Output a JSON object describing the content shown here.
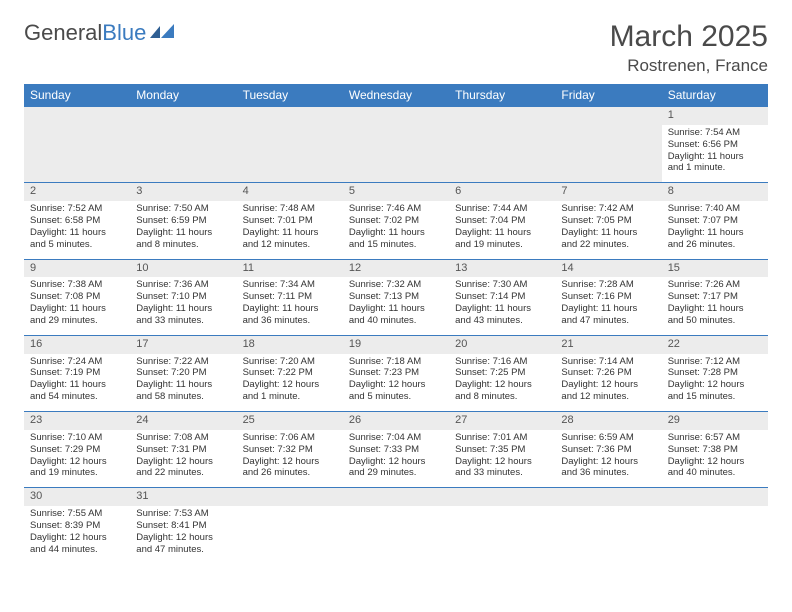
{
  "logo": {
    "text1": "General",
    "text2": "Blue"
  },
  "title": "March 2025",
  "location": "Rostrenen, France",
  "colors": {
    "header_bg": "#3b7bbf",
    "header_text": "#ffffff",
    "daynum_bg": "#ececec",
    "border": "#3b7bbf",
    "text": "#333333",
    "title_text": "#4a4a4a"
  },
  "weekdays": [
    "Sunday",
    "Monday",
    "Tuesday",
    "Wednesday",
    "Thursday",
    "Friday",
    "Saturday"
  ],
  "weeks": [
    [
      null,
      null,
      null,
      null,
      null,
      null,
      {
        "n": "1",
        "sr": "Sunrise: 7:54 AM",
        "ss": "Sunset: 6:56 PM",
        "dl": "Daylight: 11 hours and 1 minute."
      }
    ],
    [
      {
        "n": "2",
        "sr": "Sunrise: 7:52 AM",
        "ss": "Sunset: 6:58 PM",
        "dl": "Daylight: 11 hours and 5 minutes."
      },
      {
        "n": "3",
        "sr": "Sunrise: 7:50 AM",
        "ss": "Sunset: 6:59 PM",
        "dl": "Daylight: 11 hours and 8 minutes."
      },
      {
        "n": "4",
        "sr": "Sunrise: 7:48 AM",
        "ss": "Sunset: 7:01 PM",
        "dl": "Daylight: 11 hours and 12 minutes."
      },
      {
        "n": "5",
        "sr": "Sunrise: 7:46 AM",
        "ss": "Sunset: 7:02 PM",
        "dl": "Daylight: 11 hours and 15 minutes."
      },
      {
        "n": "6",
        "sr": "Sunrise: 7:44 AM",
        "ss": "Sunset: 7:04 PM",
        "dl": "Daylight: 11 hours and 19 minutes."
      },
      {
        "n": "7",
        "sr": "Sunrise: 7:42 AM",
        "ss": "Sunset: 7:05 PM",
        "dl": "Daylight: 11 hours and 22 minutes."
      },
      {
        "n": "8",
        "sr": "Sunrise: 7:40 AM",
        "ss": "Sunset: 7:07 PM",
        "dl": "Daylight: 11 hours and 26 minutes."
      }
    ],
    [
      {
        "n": "9",
        "sr": "Sunrise: 7:38 AM",
        "ss": "Sunset: 7:08 PM",
        "dl": "Daylight: 11 hours and 29 minutes."
      },
      {
        "n": "10",
        "sr": "Sunrise: 7:36 AM",
        "ss": "Sunset: 7:10 PM",
        "dl": "Daylight: 11 hours and 33 minutes."
      },
      {
        "n": "11",
        "sr": "Sunrise: 7:34 AM",
        "ss": "Sunset: 7:11 PM",
        "dl": "Daylight: 11 hours and 36 minutes."
      },
      {
        "n": "12",
        "sr": "Sunrise: 7:32 AM",
        "ss": "Sunset: 7:13 PM",
        "dl": "Daylight: 11 hours and 40 minutes."
      },
      {
        "n": "13",
        "sr": "Sunrise: 7:30 AM",
        "ss": "Sunset: 7:14 PM",
        "dl": "Daylight: 11 hours and 43 minutes."
      },
      {
        "n": "14",
        "sr": "Sunrise: 7:28 AM",
        "ss": "Sunset: 7:16 PM",
        "dl": "Daylight: 11 hours and 47 minutes."
      },
      {
        "n": "15",
        "sr": "Sunrise: 7:26 AM",
        "ss": "Sunset: 7:17 PM",
        "dl": "Daylight: 11 hours and 50 minutes."
      }
    ],
    [
      {
        "n": "16",
        "sr": "Sunrise: 7:24 AM",
        "ss": "Sunset: 7:19 PM",
        "dl": "Daylight: 11 hours and 54 minutes."
      },
      {
        "n": "17",
        "sr": "Sunrise: 7:22 AM",
        "ss": "Sunset: 7:20 PM",
        "dl": "Daylight: 11 hours and 58 minutes."
      },
      {
        "n": "18",
        "sr": "Sunrise: 7:20 AM",
        "ss": "Sunset: 7:22 PM",
        "dl": "Daylight: 12 hours and 1 minute."
      },
      {
        "n": "19",
        "sr": "Sunrise: 7:18 AM",
        "ss": "Sunset: 7:23 PM",
        "dl": "Daylight: 12 hours and 5 minutes."
      },
      {
        "n": "20",
        "sr": "Sunrise: 7:16 AM",
        "ss": "Sunset: 7:25 PM",
        "dl": "Daylight: 12 hours and 8 minutes."
      },
      {
        "n": "21",
        "sr": "Sunrise: 7:14 AM",
        "ss": "Sunset: 7:26 PM",
        "dl": "Daylight: 12 hours and 12 minutes."
      },
      {
        "n": "22",
        "sr": "Sunrise: 7:12 AM",
        "ss": "Sunset: 7:28 PM",
        "dl": "Daylight: 12 hours and 15 minutes."
      }
    ],
    [
      {
        "n": "23",
        "sr": "Sunrise: 7:10 AM",
        "ss": "Sunset: 7:29 PM",
        "dl": "Daylight: 12 hours and 19 minutes."
      },
      {
        "n": "24",
        "sr": "Sunrise: 7:08 AM",
        "ss": "Sunset: 7:31 PM",
        "dl": "Daylight: 12 hours and 22 minutes."
      },
      {
        "n": "25",
        "sr": "Sunrise: 7:06 AM",
        "ss": "Sunset: 7:32 PM",
        "dl": "Daylight: 12 hours and 26 minutes."
      },
      {
        "n": "26",
        "sr": "Sunrise: 7:04 AM",
        "ss": "Sunset: 7:33 PM",
        "dl": "Daylight: 12 hours and 29 minutes."
      },
      {
        "n": "27",
        "sr": "Sunrise: 7:01 AM",
        "ss": "Sunset: 7:35 PM",
        "dl": "Daylight: 12 hours and 33 minutes."
      },
      {
        "n": "28",
        "sr": "Sunrise: 6:59 AM",
        "ss": "Sunset: 7:36 PM",
        "dl": "Daylight: 12 hours and 36 minutes."
      },
      {
        "n": "29",
        "sr": "Sunrise: 6:57 AM",
        "ss": "Sunset: 7:38 PM",
        "dl": "Daylight: 12 hours and 40 minutes."
      }
    ],
    [
      {
        "n": "30",
        "sr": "Sunrise: 7:55 AM",
        "ss": "Sunset: 8:39 PM",
        "dl": "Daylight: 12 hours and 44 minutes."
      },
      {
        "n": "31",
        "sr": "Sunrise: 7:53 AM",
        "ss": "Sunset: 8:41 PM",
        "dl": "Daylight: 12 hours and 47 minutes."
      },
      null,
      null,
      null,
      null,
      null
    ]
  ]
}
